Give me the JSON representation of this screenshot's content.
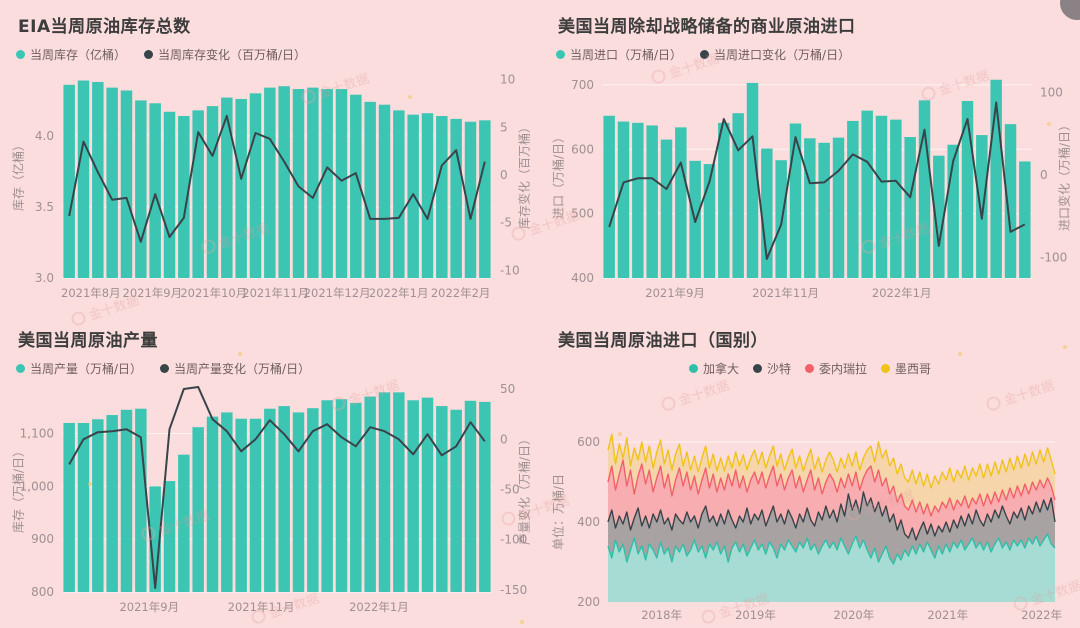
{
  "app": {
    "watermark": "金十数据"
  },
  "theme": {
    "background": "#fbdddd",
    "bar_teal": "#3dc5b3",
    "line_dark": "#39444a",
    "red": "#f2606a",
    "yellow": "#efc319",
    "grid": "rgba(255,255,255,0.65)",
    "tick_text": "#a09091",
    "corner_badge": "#8a8285"
  },
  "chart_data": [
    {
      "id": "eia-weekly-crude-inventory",
      "type": "bar+line",
      "title": "EIA当周原油库存总数",
      "legend": [
        {
          "label": "当周库存（亿桶）",
          "color": "#3dc5b3"
        },
        {
          "label": "当周库存变化（百万桶/日）",
          "color": "#39444a"
        }
      ],
      "y_left": {
        "name": "库存（亿桶）",
        "min": 3.0,
        "max": 4.45,
        "ticks": [
          3.0,
          3.5,
          4.0
        ],
        "tick_labels": [
          "3.0",
          "3.5",
          "4.0"
        ]
      },
      "y_right": {
        "name": "库存变化（百万桶）",
        "min": -10.8,
        "max": 10.8,
        "ticks": [
          -10,
          -5,
          0,
          5,
          10
        ],
        "tick_labels": [
          "-10",
          "-5",
          "0",
          "5",
          "10"
        ]
      },
      "x_labels": [
        {
          "label": "2021年8月",
          "pos": 0.067
        },
        {
          "label": "2021年9月",
          "pos": 0.21
        },
        {
          "label": "2021年10月",
          "pos": 0.353
        },
        {
          "label": "2021年11月",
          "pos": 0.497
        },
        {
          "label": "2021年12月",
          "pos": 0.64
        },
        {
          "label": "2022年1月",
          "pos": 0.783
        },
        {
          "label": "2022年2月",
          "pos": 0.927
        }
      ],
      "bars": [
        4.36,
        4.39,
        4.38,
        4.34,
        4.32,
        4.25,
        4.23,
        4.17,
        4.14,
        4.18,
        4.21,
        4.27,
        4.26,
        4.3,
        4.34,
        4.35,
        4.33,
        4.34,
        4.33,
        4.33,
        4.29,
        4.24,
        4.22,
        4.18,
        4.15,
        4.16,
        4.14,
        4.12,
        4.1,
        4.11
      ],
      "line": [
        -4.3,
        3.5,
        0.3,
        -2.6,
        -2.4,
        -7.0,
        -2.0,
        -6.5,
        -4.5,
        4.5,
        2.0,
        6.2,
        -0.4,
        4.4,
        3.8,
        1.4,
        -1.2,
        -2.4,
        0.8,
        -0.6,
        0.2,
        -4.6,
        -4.6,
        -4.5,
        -2.0,
        -4.6,
        1.0,
        2.6,
        -4.6,
        1.4
      ],
      "bar_color": "#3dc5b3",
      "line_color": "#39444a"
    },
    {
      "id": "us-commercial-crude-imports-ex-spr",
      "type": "bar+line",
      "title": "美国当周除却战略储备的商业原油进口",
      "legend": [
        {
          "label": "当周进口（万桶/日）",
          "color": "#3dc5b3"
        },
        {
          "label": "当周进口变化（万桶/日）",
          "color": "#39444a"
        }
      ],
      "y_left": {
        "name": "进口（万桶/日）",
        "min": 400,
        "max": 720,
        "ticks": [
          400,
          500,
          600,
          700
        ],
        "tick_labels": [
          "400",
          "500",
          "600",
          "700"
        ]
      },
      "y_right": {
        "name": "进口变化（万桶/日）",
        "min": -125,
        "max": 125,
        "ticks": [
          -100,
          0,
          100
        ],
        "tick_labels": [
          "-100",
          "0",
          "100"
        ]
      },
      "x_labels": [
        {
          "label": "2021年9月",
          "pos": 0.17
        },
        {
          "label": "2021年11月",
          "pos": 0.427
        },
        {
          "label": "2022年1月",
          "pos": 0.697
        }
      ],
      "bars": [
        652,
        643,
        641,
        637,
        615,
        634,
        582,
        577,
        641,
        656,
        703,
        601,
        583,
        640,
        617,
        610,
        618,
        644,
        660,
        652,
        646,
        619,
        676,
        590,
        607,
        675,
        622,
        708,
        639,
        581
      ],
      "line": [
        -63,
        -9,
        -4,
        -4,
        -17,
        15,
        -57,
        -8,
        68,
        30,
        47,
        -102,
        -60,
        46,
        -10,
        -9,
        5,
        25,
        16,
        -8,
        -7,
        -27,
        55,
        -86,
        17,
        68,
        -53,
        88,
        -69,
        -60
      ],
      "bar_color": "#3dc5b3",
      "line_color": "#39444a"
    },
    {
      "id": "us-weekly-crude-production",
      "type": "bar+line",
      "title": "美国当周原油产量",
      "legend": [
        {
          "label": "当周产量（万桶/日）",
          "color": "#3dc5b3"
        },
        {
          "label": "当周产量变化（万桶/日）",
          "color": "#39444a"
        }
      ],
      "y_left": {
        "name": "库存（万桶/日）",
        "min": 800,
        "max": 1190,
        "ticks": [
          800,
          900,
          1000,
          1100
        ],
        "tick_labels": [
          "800",
          "900",
          "1,000",
          "1,100"
        ]
      },
      "y_right": {
        "name": "产量变化（万桶/日）",
        "min": -152,
        "max": 53,
        "ticks": [
          -150,
          -100,
          -50,
          0,
          50
        ],
        "tick_labels": [
          "-150",
          "-100",
          "-50",
          "0",
          "50"
        ]
      },
      "x_labels": [
        {
          "label": "2021年9月",
          "pos": 0.203
        },
        {
          "label": "2021年11月",
          "pos": 0.463
        },
        {
          "label": "2022年1月",
          "pos": 0.737
        }
      ],
      "bars": [
        1120,
        1120,
        1127,
        1135,
        1145,
        1147,
        1000,
        1010,
        1060,
        1112,
        1132,
        1140,
        1128,
        1128,
        1147,
        1152,
        1140,
        1148,
        1163,
        1165,
        1158,
        1170,
        1178,
        1178,
        1163,
        1168,
        1152,
        1145,
        1162,
        1160
      ],
      "line": [
        -25,
        0,
        7,
        8,
        10,
        2,
        -148,
        10,
        50,
        52,
        20,
        8,
        -12,
        0,
        19,
        5,
        -12,
        8,
        15,
        2,
        -7,
        12,
        8,
        0,
        -15,
        5,
        -16,
        -7,
        17,
        -2
      ],
      "bar_color": "#3dc5b3",
      "line_color": "#39444a"
    },
    {
      "id": "us-weekly-crude-imports-by-country",
      "type": "area",
      "title": "美国当周原油进口（国别）",
      "legend": [
        {
          "label": "加拿大",
          "color": "#2fbfa9"
        },
        {
          "label": "沙特",
          "color": "#39444a"
        },
        {
          "label": "委内瑞拉",
          "color": "#f2606a"
        },
        {
          "label": "墨西哥",
          "color": "#efc319"
        }
      ],
      "y_left": {
        "name": "单位：万桶/日",
        "min": 200,
        "max": 650,
        "ticks": [
          200,
          400,
          600
        ],
        "tick_labels": [
          "200",
          "400",
          "600"
        ]
      },
      "x_labels": [
        {
          "label": "2018年",
          "pos": 0.12
        },
        {
          "label": "2019年",
          "pos": 0.33
        },
        {
          "label": "2020年",
          "pos": 0.55
        },
        {
          "label": "2021年",
          "pos": 0.76
        },
        {
          "label": "2022年",
          "pos": 0.97
        }
      ],
      "series": [
        {
          "name": "加拿大",
          "color": "#2fbfa9",
          "band": "#a6dcd3",
          "values": [
            340,
            310,
            355,
            325,
            345,
            300,
            330,
            360,
            320,
            340,
            305,
            345,
            330,
            310,
            350,
            320,
            335,
            300,
            340,
            325,
            345,
            315,
            330,
            355,
            325,
            340,
            310,
            345,
            330,
            350,
            320,
            340,
            300,
            335,
            350,
            325,
            345,
            315,
            335,
            355,
            330,
            345,
            320,
            350,
            335,
            310,
            345,
            330,
            355,
            340,
            325,
            350,
            335,
            360,
            330,
            345,
            320,
            340,
            355,
            335,
            350,
            330,
            360,
            340,
            320,
            345,
            365,
            335,
            355,
            330,
            310,
            335,
            300,
            320,
            340,
            310,
            295,
            320,
            305,
            330,
            315,
            340,
            320,
            345,
            325,
            350,
            330,
            310,
            340,
            320,
            345,
            325,
            350,
            335,
            355,
            330,
            345,
            360,
            335,
            350,
            330,
            350,
            325,
            345,
            360,
            335,
            350,
            330,
            355,
            340,
            355,
            335,
            360,
            345,
            365,
            340,
            355,
            370,
            345,
            335
          ]
        },
        {
          "name": "沙特",
          "color": "#39444a",
          "band": "#a8a2a3",
          "values": [
            400,
            430,
            385,
            415,
            395,
            425,
            380,
            410,
            435,
            390,
            415,
            385,
            420,
            400,
            430,
            395,
            410,
            380,
            420,
            405,
            395,
            425,
            400,
            415,
            385,
            420,
            440,
            400,
            415,
            390,
            420,
            395,
            430,
            405,
            385,
            415,
            400,
            435,
            395,
            420,
            405,
            430,
            390,
            415,
            440,
            400,
            420,
            395,
            430,
            410,
            385,
            420,
            400,
            435,
            405,
            390,
            425,
            405,
            440,
            410,
            430,
            400,
            445,
            415,
            470,
            430,
            455,
            420,
            475,
            440,
            460,
            425,
            450,
            415,
            440,
            400,
            420,
            380,
            405,
            370,
            360,
            385,
            355,
            380,
            400,
            370,
            395,
            365,
            390,
            375,
            400,
            375,
            405,
            385,
            415,
            390,
            420,
            395,
            430,
            405,
            390,
            420,
            400,
            430,
            410,
            440,
            415,
            395,
            425,
            410,
            435,
            405,
            440,
            420,
            450,
            425,
            455,
            430,
            460,
            400
          ]
        },
        {
          "name": "委内瑞拉",
          "color": "#f2606a",
          "band": "#f8adb0",
          "values": [
            500,
            540,
            480,
            520,
            555,
            490,
            530,
            470,
            515,
            545,
            495,
            530,
            475,
            510,
            540,
            485,
            520,
            465,
            505,
            535,
            490,
            525,
            480,
            515,
            470,
            505,
            535,
            485,
            520,
            475,
            510,
            480,
            520,
            490,
            530,
            485,
            515,
            475,
            505,
            525,
            495,
            525,
            485,
            515,
            540,
            490,
            520,
            480,
            510,
            530,
            485,
            515,
            475,
            505,
            530,
            480,
            510,
            470,
            500,
            520,
            505,
            475,
            510,
            485,
            520,
            490,
            525,
            480,
            510,
            530,
            540,
            500,
            530,
            490,
            510,
            470,
            490,
            450,
            470,
            440,
            430,
            455,
            425,
            450,
            420,
            445,
            415,
            440,
            425,
            450,
            435,
            460,
            430,
            455,
            440,
            465,
            435,
            460,
            445,
            470,
            440,
            470,
            445,
            475,
            450,
            480,
            455,
            485,
            460,
            490,
            465,
            495,
            470,
            500,
            480,
            505,
            485,
            510,
            490,
            455
          ]
        },
        {
          "name": "墨西哥",
          "color": "#efc319",
          "band": "#f6d5ab",
          "values": [
            580,
            620,
            545,
            595,
            560,
            610,
            540,
            585,
            555,
            600,
            550,
            590,
            535,
            575,
            605,
            545,
            580,
            530,
            570,
            595,
            540,
            575,
            530,
            565,
            525,
            560,
            590,
            535,
            570,
            528,
            560,
            528,
            565,
            535,
            575,
            540,
            568,
            530,
            560,
            580,
            545,
            575,
            535,
            565,
            590,
            540,
            570,
            530,
            560,
            582,
            535,
            565,
            528,
            558,
            582,
            532,
            562,
            525,
            555,
            575,
            555,
            525,
            560,
            535,
            570,
            540,
            575,
            530,
            560,
            580,
            590,
            550,
            600,
            560,
            580,
            540,
            560,
            520,
            545,
            510,
            500,
            530,
            495,
            525,
            490,
            520,
            485,
            515,
            495,
            525,
            505,
            535,
            500,
            530,
            510,
            540,
            505,
            535,
            515,
            545,
            510,
            545,
            515,
            550,
            520,
            555,
            525,
            560,
            530,
            565,
            535,
            570,
            540,
            575,
            545,
            580,
            550,
            585,
            555,
            520
          ]
        }
      ]
    }
  ]
}
